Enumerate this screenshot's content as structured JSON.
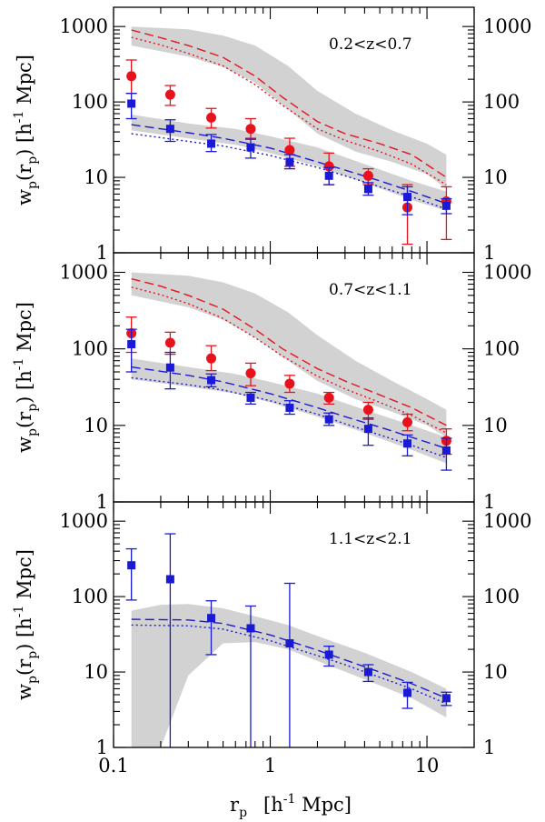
{
  "chart_data": [
    {
      "type": "scatter",
      "panel_label": "0.2<z<0.7",
      "xlim": [
        0.1,
        20
      ],
      "ylim": [
        1,
        1800
      ],
      "xscale": "log",
      "yscale": "log",
      "ylabel": "w_p(r_p) [h^-1 Mpc]",
      "series": [
        {
          "name": "red",
          "color": "#e8121c",
          "marker": "circle",
          "points": [
            {
              "x": 0.13,
              "y": 220,
              "lo": 130,
              "hi": 360
            },
            {
              "x": 0.23,
              "y": 125,
              "lo": 90,
              "hi": 165
            },
            {
              "x": 0.42,
              "y": 62,
              "lo": 45,
              "hi": 82
            },
            {
              "x": 0.75,
              "y": 44,
              "lo": 33,
              "hi": 60
            },
            {
              "x": 1.33,
              "y": 23,
              "lo": 14,
              "hi": 33
            },
            {
              "x": 2.37,
              "y": 14,
              "lo": 8,
              "hi": 21
            },
            {
              "x": 4.22,
              "y": 10.5,
              "lo": 8,
              "hi": 13
            },
            {
              "x": 7.5,
              "y": 4.0,
              "lo": 1.3,
              "hi": 8
            },
            {
              "x": 13.3,
              "y": 4.8,
              "lo": 1.5,
              "hi": 7.5
            }
          ]
        },
        {
          "name": "blue",
          "color": "#1a1ad6",
          "marker": "square",
          "points": [
            {
              "x": 0.13,
              "y": 95,
              "lo": 60,
              "hi": 130
            },
            {
              "x": 0.23,
              "y": 44,
              "lo": 30,
              "hi": 58
            },
            {
              "x": 0.42,
              "y": 28,
              "lo": 22,
              "hi": 37
            },
            {
              "x": 0.75,
              "y": 25,
              "lo": 18,
              "hi": 32
            },
            {
              "x": 1.33,
              "y": 16,
              "lo": 13,
              "hi": 20
            },
            {
              "x": 2.37,
              "y": 10.5,
              "lo": 8,
              "hi": 13.5
            },
            {
              "x": 4.22,
              "y": 7,
              "lo": 5.8,
              "hi": 8.5
            },
            {
              "x": 7.5,
              "y": 5.5,
              "lo": 3.2,
              "hi": 7.5
            },
            {
              "x": 13.3,
              "y": 4.2,
              "lo": 3.3,
              "hi": 5.2
            }
          ]
        }
      ],
      "models": [
        {
          "series": "red",
          "style": "dashed",
          "x": [
            0.13,
            0.2,
            0.3,
            0.5,
            0.8,
            1.2,
            2,
            3,
            5,
            8,
            13.3
          ],
          "y": [
            900,
            710,
            560,
            390,
            220,
            115,
            55,
            38,
            28,
            20,
            10
          ]
        },
        {
          "series": "red",
          "style": "dotted",
          "x": [
            0.13,
            0.2,
            0.3,
            0.5,
            0.8,
            1.2,
            2,
            3,
            5,
            8,
            13.3
          ],
          "y": [
            720,
            570,
            440,
            300,
            170,
            90,
            44,
            31,
            22,
            15,
            8
          ]
        },
        {
          "series": "blue",
          "style": "dashed",
          "x": [
            0.13,
            0.3,
            0.5,
            1,
            2,
            3,
            5,
            8,
            13.3
          ],
          "y": [
            50,
            39,
            33,
            24.5,
            16,
            12.5,
            9,
            6.5,
            4.5
          ]
        },
        {
          "series": "blue",
          "style": "dotted",
          "x": [
            0.13,
            0.3,
            0.5,
            1,
            2,
            3,
            5,
            8,
            13.3
          ],
          "y": [
            38,
            30,
            26,
            19.5,
            13.5,
            10.5,
            7.5,
            5.5,
            3.8
          ]
        }
      ],
      "bands": [
        {
          "series": "red",
          "x": [
            0.13,
            0.3,
            0.5,
            0.8,
            1.3,
            2,
            3.5,
            6,
            10,
            13.3
          ],
          "lower": [
            560,
            400,
            290,
            180,
            80,
            38,
            22,
            16,
            11,
            7
          ],
          "upper": [
            1000,
            920,
            760,
            560,
            300,
            140,
            70,
            42,
            28,
            20
          ]
        },
        {
          "series": "blue",
          "x": [
            0.13,
            0.3,
            0.6,
            1,
            2,
            4,
            8,
            13.3
          ],
          "lower": [
            42,
            33,
            27,
            21,
            14,
            8.5,
            5,
            3.6
          ],
          "upper": [
            68,
            52,
            44,
            35,
            25,
            15,
            9,
            6.5
          ]
        }
      ]
    },
    {
      "type": "scatter",
      "panel_label": "0.7<z<1.1",
      "xlim": [
        0.1,
        20
      ],
      "ylim": [
        1,
        1800
      ],
      "xscale": "log",
      "yscale": "log",
      "ylabel": "w_p(r_p) [h^-1 Mpc]",
      "series": [
        {
          "name": "red",
          "color": "#e8121c",
          "marker": "circle",
          "points": [
            {
              "x": 0.13,
              "y": 160,
              "lo": 90,
              "hi": 260
            },
            {
              "x": 0.23,
              "y": 120,
              "lo": 85,
              "hi": 165
            },
            {
              "x": 0.42,
              "y": 75,
              "lo": 52,
              "hi": 110
            },
            {
              "x": 0.75,
              "y": 48,
              "lo": 33,
              "hi": 65
            },
            {
              "x": 1.33,
              "y": 35,
              "lo": 27,
              "hi": 45
            },
            {
              "x": 2.37,
              "y": 23,
              "lo": 19,
              "hi": 27
            },
            {
              "x": 4.22,
              "y": 16,
              "lo": 12,
              "hi": 20
            },
            {
              "x": 7.5,
              "y": 11,
              "lo": 8.5,
              "hi": 14
            },
            {
              "x": 13.3,
              "y": 6.3,
              "lo": 4.2,
              "hi": 9
            }
          ]
        },
        {
          "name": "blue",
          "color": "#1a1ad6",
          "marker": "square",
          "points": [
            {
              "x": 0.13,
              "y": 115,
              "lo": 50,
              "hi": 180
            },
            {
              "x": 0.23,
              "y": 57,
              "lo": 30,
              "hi": 90
            },
            {
              "x": 0.42,
              "y": 39,
              "lo": 32,
              "hi": 47
            },
            {
              "x": 0.75,
              "y": 23,
              "lo": 19,
              "hi": 27
            },
            {
              "x": 1.33,
              "y": 17,
              "lo": 14,
              "hi": 21
            },
            {
              "x": 2.37,
              "y": 12,
              "lo": 10,
              "hi": 14.5
            },
            {
              "x": 4.22,
              "y": 9,
              "lo": 5.5,
              "hi": 12.5
            },
            {
              "x": 7.5,
              "y": 5.8,
              "lo": 4,
              "hi": 7.5
            },
            {
              "x": 13.3,
              "y": 4.7,
              "lo": 2.6,
              "hi": 6.8
            }
          ]
        }
      ],
      "models": [
        {
          "series": "red",
          "style": "dashed",
          "x": [
            0.13,
            0.2,
            0.3,
            0.5,
            0.8,
            1.2,
            2,
            3,
            5,
            8,
            13.3
          ],
          "y": [
            820,
            660,
            500,
            330,
            180,
            100,
            55,
            38,
            25,
            17,
            10
          ]
        },
        {
          "series": "red",
          "style": "dotted",
          "x": [
            0.13,
            0.2,
            0.3,
            0.5,
            0.8,
            1.2,
            2,
            3,
            5,
            8,
            13.3
          ],
          "y": [
            640,
            510,
            390,
            250,
            140,
            80,
            44,
            30,
            20,
            13.5,
            8
          ]
        },
        {
          "series": "blue",
          "style": "dashed",
          "x": [
            0.13,
            0.3,
            0.5,
            1,
            2,
            3,
            5,
            8,
            13.3
          ],
          "y": [
            58,
            45,
            37,
            26,
            17,
            13,
            9.5,
            7,
            5
          ]
        },
        {
          "series": "blue",
          "style": "dotted",
          "x": [
            0.13,
            0.3,
            0.5,
            1,
            2,
            3,
            5,
            8,
            13.3
          ],
          "y": [
            42,
            34,
            29,
            21,
            14,
            10.5,
            7.5,
            5.5,
            3.8
          ]
        }
      ],
      "bands": [
        {
          "series": "red",
          "x": [
            0.13,
            0.3,
            0.5,
            0.8,
            1.3,
            2,
            3.5,
            6,
            10,
            13.3
          ],
          "lower": [
            500,
            350,
            240,
            140,
            70,
            38,
            22,
            15,
            10,
            7
          ],
          "upper": [
            1000,
            900,
            740,
            530,
            300,
            150,
            70,
            38,
            22,
            16
          ]
        },
        {
          "series": "blue",
          "x": [
            0.13,
            0.3,
            0.6,
            1,
            2,
            4,
            8,
            13.3
          ],
          "lower": [
            40,
            32,
            26,
            20,
            13,
            8,
            4.8,
            3.2
          ],
          "upper": [
            75,
            58,
            47,
            37,
            26,
            16,
            10,
            7
          ]
        }
      ]
    },
    {
      "type": "scatter",
      "panel_label": "1.1<z<2.1",
      "xlim": [
        0.1,
        20
      ],
      "ylim": [
        1,
        1800
      ],
      "xscale": "log",
      "yscale": "log",
      "xlabel": "r_p [h^-1 Mpc]",
      "ylabel": "w_p(r_p) [h^-1 Mpc]",
      "x_tick_labels": [
        "0.1",
        "1",
        "10"
      ],
      "series": [
        {
          "name": "blue",
          "color": "#1a1ad6",
          "marker": "square",
          "points": [
            {
              "x": 0.13,
              "y": 260,
              "lo": 90,
              "hi": 430
            },
            {
              "x": 0.23,
              "y": 170,
              "lo": 1,
              "hi": 680
            },
            {
              "x": 0.42,
              "y": 52,
              "lo": 17,
              "hi": 88
            },
            {
              "x": 0.75,
              "y": 38,
              "lo": 1,
              "hi": 75
            },
            {
              "x": 1.33,
              "y": 24,
              "lo": 1,
              "hi": 150
            },
            {
              "x": 2.37,
              "y": 17,
              "lo": 12,
              "hi": 22
            },
            {
              "x": 4.22,
              "y": 10,
              "lo": 7.5,
              "hi": 12.5
            },
            {
              "x": 7.5,
              "y": 5.3,
              "lo": 3.3,
              "hi": 7.3
            },
            {
              "x": 13.3,
              "y": 4.5,
              "lo": 3.6,
              "hi": 5.4
            }
          ]
        }
      ],
      "models": [
        {
          "series": "blue",
          "style": "dashed",
          "x": [
            0.13,
            0.3,
            0.5,
            1,
            2,
            3,
            5,
            8,
            13.3
          ],
          "y": [
            50,
            49,
            44,
            31,
            19.5,
            14.5,
            10,
            7,
            4.5
          ]
        },
        {
          "series": "blue",
          "style": "dotted",
          "x": [
            0.13,
            0.3,
            0.5,
            1,
            2,
            3,
            5,
            8,
            13.3
          ],
          "y": [
            42,
            41,
            37,
            26,
            16.5,
            12.5,
            8.5,
            6,
            3.8
          ]
        }
      ],
      "bands": [
        {
          "series": "blue",
          "x": [
            0.13,
            0.2,
            0.3,
            0.5,
            0.8,
            1.3,
            2,
            4,
            8,
            13.3
          ],
          "lower": [
            1,
            1,
            9,
            24,
            25,
            20,
            14,
            8,
            4.5,
            2.5
          ],
          "upper": [
            65,
            78,
            80,
            70,
            55,
            42,
            30,
            18,
            10,
            6
          ]
        }
      ]
    }
  ]
}
